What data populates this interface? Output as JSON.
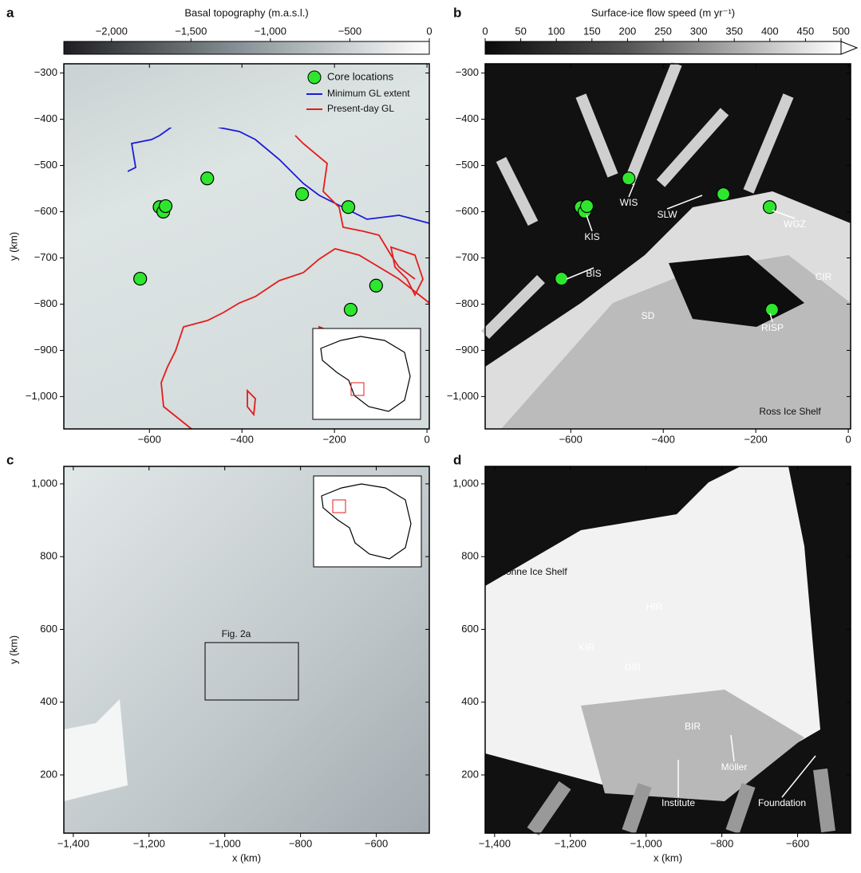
{
  "chart_data": [
    {
      "type": "map",
      "label": "a",
      "colorbar": {
        "label": "Basal topography (m.a.s.l.)",
        "lim": [
          -2300,
          0
        ],
        "ticks": [
          {
            "value": -2000,
            "label": "−2,000"
          },
          {
            "value": -1500,
            "label": "−1,500"
          },
          {
            "value": -1000,
            "label": "−1,000"
          },
          {
            "value": -500,
            "label": "−500"
          },
          0
        ]
      },
      "xlim": [
        -785,
        5
      ],
      "ylim": [
        -1070,
        -280
      ],
      "xticks": [
        {
          "value": -600,
          "label": "−600"
        },
        {
          "value": -400,
          "label": "−400"
        },
        {
          "value": -200,
          "label": "−200"
        },
        0
      ],
      "yticks": [
        {
          "value": -300,
          "label": "−300"
        },
        {
          "value": -400,
          "label": "−400"
        },
        {
          "value": -500,
          "label": "−500"
        },
        {
          "value": -600,
          "label": "−600"
        },
        {
          "value": -700,
          "label": "−700"
        },
        {
          "value": -800,
          "label": "−800"
        },
        {
          "value": -900,
          "label": "−900"
        },
        {
          "value": -1000,
          "label": "−1,000"
        }
      ],
      "ylabel": "y (km)",
      "series": [
        {
          "name": "Core locations",
          "color": "#2ee62e",
          "x": [
            -620,
            -578,
            -570,
            -565,
            -475,
            -270,
            -170,
            -110,
            -165
          ],
          "y": [
            -745,
            -590,
            -600,
            -588,
            -528,
            -562,
            -590,
            -760,
            -812
          ]
        }
      ],
      "lines": [
        {
          "name": "Minimum GL extent",
          "color": "#1b1bd6"
        },
        {
          "name": "Present-day GL",
          "color": "#e41c1c"
        }
      ]
    },
    {
      "type": "map",
      "label": "b",
      "colorbar": {
        "label": "Surface-ice flow speed (m yr⁻¹)",
        "lim": [
          0,
          500
        ],
        "ticks": [
          0,
          50,
          100,
          150,
          200,
          250,
          300,
          350,
          400,
          450,
          500
        ]
      },
      "xlim": [
        -785,
        5
      ],
      "ylim": [
        -1070,
        -280
      ],
      "xticks": [
        {
          "value": -600,
          "label": "−600"
        },
        {
          "value": -400,
          "label": "−400"
        },
        {
          "value": -200,
          "label": "−200"
        },
        0
      ],
      "yticks": [
        {
          "value": -300,
          "label": "−300"
        },
        {
          "value": -400,
          "label": "−400"
        },
        {
          "value": -500,
          "label": "−500"
        },
        {
          "value": -600,
          "label": "−600"
        },
        {
          "value": -700,
          "label": "−700"
        },
        {
          "value": -800,
          "label": "−800"
        },
        {
          "value": -900,
          "label": "−900"
        },
        {
          "value": -1000,
          "label": "−1,000"
        }
      ],
      "series": [
        {
          "name": null,
          "color": "#2ee62e",
          "x": [
            -620,
            -578,
            -570,
            -565,
            -475,
            -270,
            -170,
            -165
          ],
          "y": [
            -745,
            -590,
            -600,
            -588,
            -528,
            -562,
            -590,
            -812
          ]
        }
      ],
      "annotations": [
        "WIS",
        "KIS",
        "SLW",
        "WGZ",
        "BIS",
        "CIR",
        "SD",
        "RISP",
        "Ross Ice Shelf"
      ]
    },
    {
      "type": "map",
      "label": "c",
      "xlim": [
        -1425,
        -460
      ],
      "ylim": [
        40,
        1048
      ],
      "xticks": [
        {
          "value": -1400,
          "label": "−1,400"
        },
        {
          "value": -1200,
          "label": "−1,200"
        },
        {
          "value": -1000,
          "label": "−1,000"
        },
        {
          "value": -800,
          "label": "−800"
        },
        {
          "value": -600,
          "label": "−600"
        }
      ],
      "yticks": [
        {
          "value": 1000,
          "label": "1,000"
        },
        800,
        600,
        400,
        200
      ],
      "xlabel": "x (km)",
      "ylabel": "y (km)",
      "annotations": [
        "Fig. 2a"
      ]
    },
    {
      "type": "map",
      "label": "d",
      "xlim": [
        -1425,
        -460
      ],
      "ylim": [
        40,
        1048
      ],
      "xticks": [
        {
          "value": -1400,
          "label": "−1,400"
        },
        {
          "value": -1200,
          "label": "−1,200"
        },
        {
          "value": -1000,
          "label": "−1,000"
        },
        {
          "value": -800,
          "label": "−800"
        },
        {
          "value": -600,
          "label": "−600"
        }
      ],
      "yticks": [
        {
          "value": 1000,
          "label": "1,000"
        },
        800,
        600,
        400,
        200
      ],
      "xlabel": "x (km)",
      "annotations": [
        "Ronne Ice Shelf",
        "HIR",
        "KIR",
        "DIR",
        "BIR",
        "Institute",
        "Möller",
        "Foundation"
      ]
    }
  ]
}
